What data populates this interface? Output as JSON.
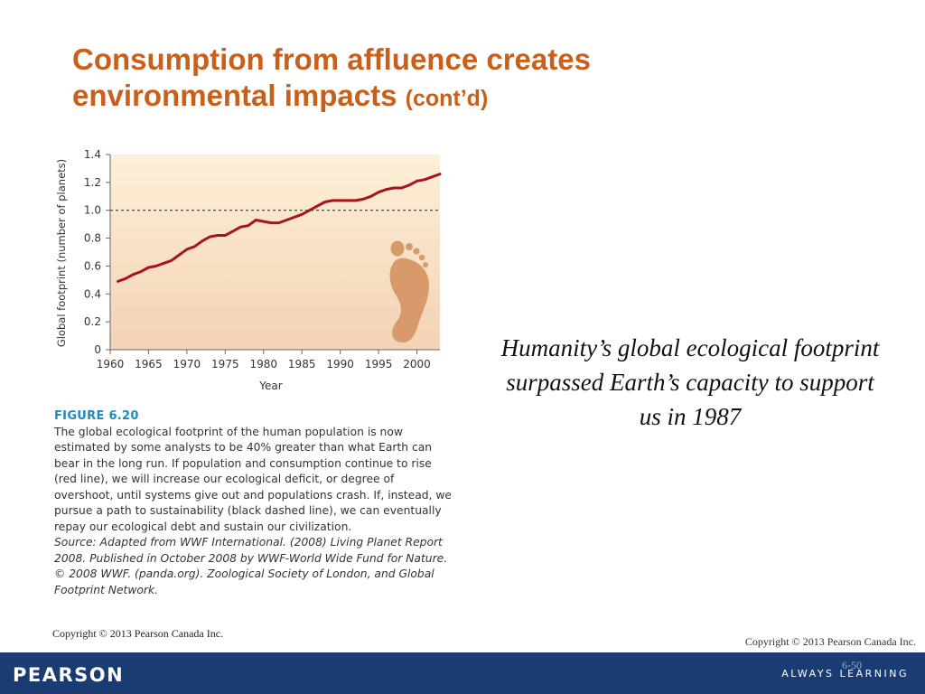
{
  "slide": {
    "title_main": "Consumption from affluence creates environmental impacts",
    "title_suffix": "(cont’d)",
    "quote": "Humanity’s global ecological footprint surpassed Earth’s capacity to support us in 1987",
    "copyright_left": "Copyright © 2013 Pearson Canada Inc.",
    "copyright_right": "Copyright © 2013 Pearson Canada Inc.",
    "page_number": "6-50",
    "brand": "PEARSON",
    "tagline": "ALWAYS LEARNING"
  },
  "figure": {
    "label": "FIGURE 6.20",
    "text": "The global ecological footprint of the human population is now estimated by some analysts to be 40% greater than what Earth can bear in the long run. If population and consumption continue to rise (red line), we will increase our ecological deficit, or degree of overshoot, until systems give out and populations crash. If, instead, we pursue a path to sustainability (black dashed line), we can eventually repay our ecological debt and sustain our civilization.",
    "source_line1": "Source: Adapted from WWF International. (2008) Living Planet Report",
    "source_line2": "2008. Published in October 2008 by WWF-World Wide Fund for Nature.",
    "source_line3": "© 2008 WWF. (panda.org). Zoological Society of London, and Global",
    "source_line4": "Footprint Network."
  },
  "chart_data": {
    "type": "line",
    "xlabel": "Year",
    "ylabel": "Global footprint (number of planets)",
    "xlim": [
      1960,
      2003
    ],
    "ylim": [
      0,
      1.4
    ],
    "xticks": [
      "1960",
      "1965",
      "1970",
      "1975",
      "1980",
      "1985",
      "1990",
      "1995",
      "2000"
    ],
    "yticks": [
      "0",
      "0.2",
      "0.4",
      "0.6",
      "0.8",
      "1.0",
      "1.2",
      "1.4"
    ],
    "reference_line": {
      "y": 1.0,
      "style": "dashed",
      "color": "#222222"
    },
    "series": [
      {
        "color": "#a8141c",
        "x": [
          1961,
          1962,
          1963,
          1964,
          1965,
          1966,
          1967,
          1968,
          1969,
          1970,
          1971,
          1972,
          1973,
          1974,
          1975,
          1976,
          1977,
          1978,
          1979,
          1980,
          1981,
          1982,
          1983,
          1984,
          1985,
          1986,
          1987,
          1988,
          1989,
          1990,
          1991,
          1992,
          1993,
          1994,
          1995,
          1996,
          1997,
          1998,
          1999,
          2000,
          2001,
          2002,
          2003
        ],
        "y": [
          0.49,
          0.51,
          0.54,
          0.56,
          0.59,
          0.6,
          0.62,
          0.64,
          0.68,
          0.72,
          0.74,
          0.78,
          0.81,
          0.82,
          0.82,
          0.85,
          0.88,
          0.89,
          0.93,
          0.92,
          0.91,
          0.91,
          0.93,
          0.95,
          0.97,
          1.0,
          1.03,
          1.06,
          1.07,
          1.07,
          1.07,
          1.07,
          1.08,
          1.1,
          1.13,
          1.15,
          1.16,
          1.16,
          1.18,
          1.21,
          1.22,
          1.24,
          1.26
        ]
      }
    ],
    "background_gradient": [
      "#fdf0d8",
      "#f3d2b5"
    ],
    "footprint_icon": "footprint-icon"
  }
}
